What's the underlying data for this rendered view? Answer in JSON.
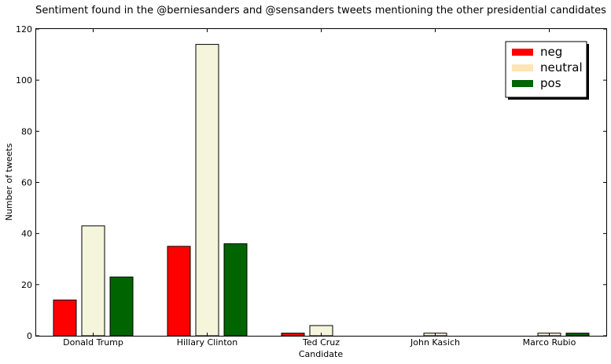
{
  "chart_data": {
    "type": "bar",
    "title": "Sentiment found in the @berniesanders and @sensanders tweets mentioning the other presidential candidates",
    "xlabel": "Candidate",
    "ylabel": "Number of tweets",
    "categories": [
      "Donald Trump",
      "Hillary Clinton",
      "Ted Cruz",
      "John Kasich",
      "Marco Rubio"
    ],
    "series": [
      {
        "name": "neg",
        "values": [
          14,
          35,
          1,
          0,
          0
        ],
        "color": "#ff0000"
      },
      {
        "name": "neutral",
        "values": [
          43,
          114,
          4,
          1,
          1
        ],
        "color": "#f5f5dc",
        "legend_color": "#ffe4b5"
      },
      {
        "name": "pos",
        "values": [
          23,
          36,
          0,
          0,
          1
        ],
        "color": "#006400"
      }
    ],
    "ylim": [
      0,
      120
    ],
    "yticks": [
      0,
      20,
      40,
      60,
      80,
      100,
      120
    ],
    "grid": false,
    "legend": "top-right"
  }
}
